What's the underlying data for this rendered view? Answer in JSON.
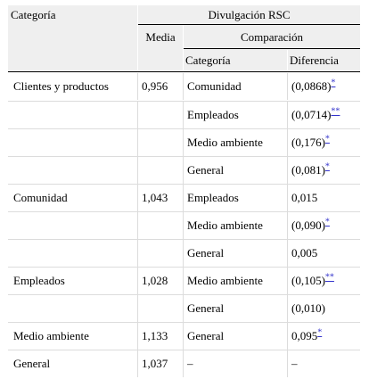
{
  "header": {
    "category": "Categoría",
    "disclosure": "Divulgación RSC",
    "mean": "Media",
    "comparison": "Comparación",
    "comp_category": "Categoría",
    "difference": "Diferencia"
  },
  "rows": [
    {
      "category": "Clientes y productos",
      "mean": "0,956",
      "comp": "Comunidad",
      "diff": "(0,0868)",
      "sig": "*"
    },
    {
      "category": "",
      "mean": "",
      "comp": "Empleados",
      "diff": "(0,0714)",
      "sig": "**"
    },
    {
      "category": "",
      "mean": "",
      "comp": "Medio ambiente",
      "diff": "(0,176)",
      "sig": "*"
    },
    {
      "category": "",
      "mean": "",
      "comp": "General",
      "diff": "(0,081)",
      "sig": "*"
    },
    {
      "category": "Comunidad",
      "mean": "1,043",
      "comp": "Empleados",
      "diff": "0,015",
      "sig": ""
    },
    {
      "category": "",
      "mean": "",
      "comp": "Medio ambiente",
      "diff": "(0,090)",
      "sig": "*"
    },
    {
      "category": "",
      "mean": "",
      "comp": "General",
      "diff": "0,005",
      "sig": ""
    },
    {
      "category": "Empleados",
      "mean": "1,028",
      "comp": "Medio ambiente",
      "diff": "(0,105)",
      "sig": "**"
    },
    {
      "category": "",
      "mean": "",
      "comp": "General",
      "diff": "(0,010)",
      "sig": ""
    },
    {
      "category": "Medio ambiente",
      "mean": "1,133",
      "comp": "General",
      "diff": "0,095",
      "sig": "*"
    },
    {
      "category": "General",
      "mean": "1,037",
      "comp": "–",
      "diff": "–",
      "sig": ""
    }
  ]
}
